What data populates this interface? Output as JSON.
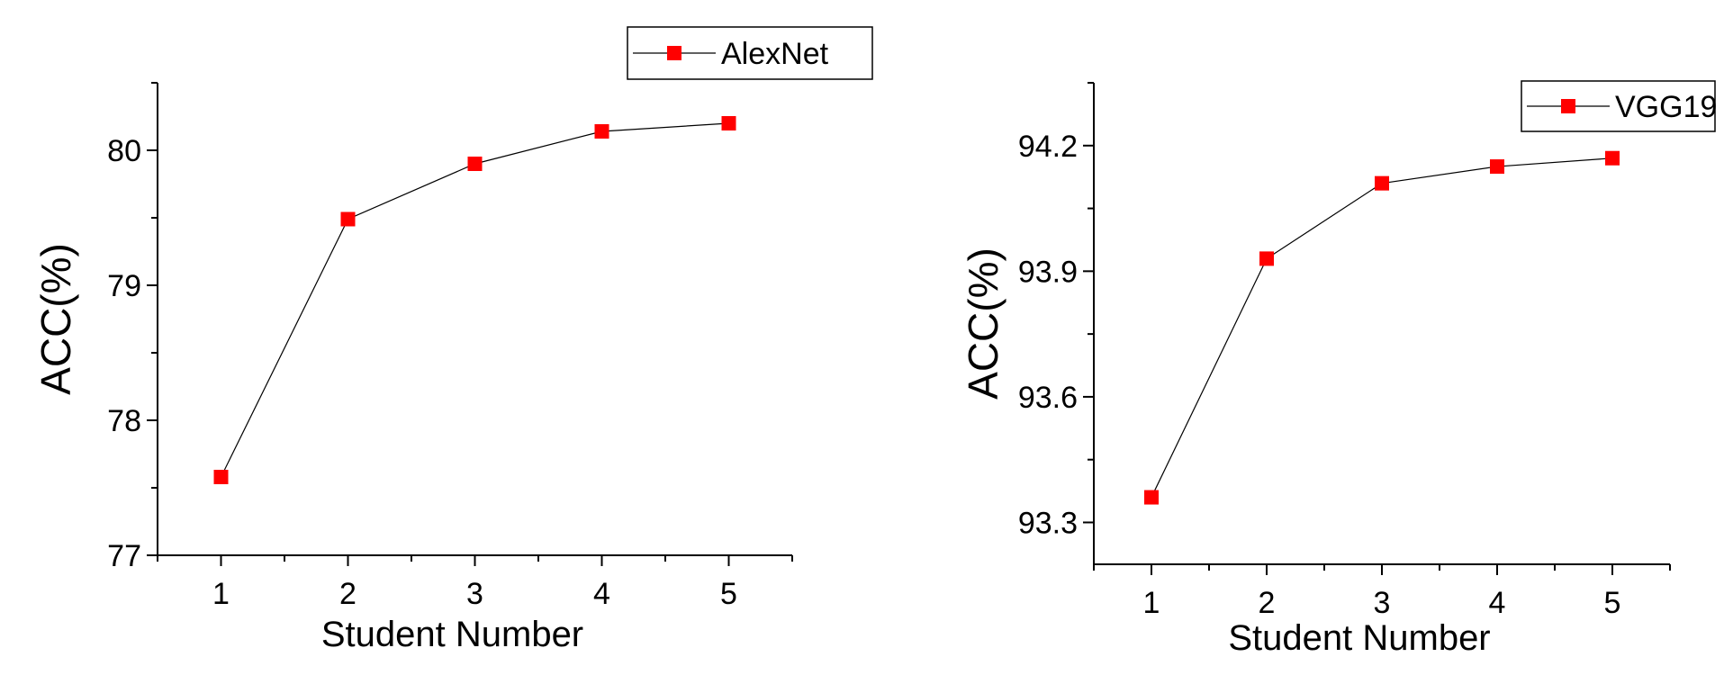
{
  "chart_data": [
    {
      "type": "line",
      "x": [
        1,
        2,
        3,
        4,
        5
      ],
      "series": [
        {
          "name": "AlexNet",
          "values": [
            77.58,
            79.49,
            79.9,
            80.14,
            80.2
          ]
        }
      ],
      "xlabel": "Student Number",
      "ylabel": "ACC(%)",
      "xlim": [
        0.5,
        5.5
      ],
      "ylim": [
        77,
        80.5
      ],
      "xticks": [
        1,
        2,
        3,
        4,
        5
      ],
      "yticks": [
        77,
        78,
        79,
        80
      ],
      "ytick_labels": [
        "77",
        "78",
        "79",
        "80"
      ],
      "legend_position": "top-right",
      "grid": false,
      "marker_color": "#ff0000",
      "line_color": "#000000"
    },
    {
      "type": "line",
      "x": [
        1,
        2,
        3,
        4,
        5
      ],
      "series": [
        {
          "name": "VGG19",
          "values": [
            93.36,
            93.93,
            94.11,
            94.15,
            94.17
          ]
        }
      ],
      "xlabel": "Student Number",
      "ylabel": "ACC(%)",
      "xlim": [
        0.5,
        5.5
      ],
      "ylim": [
        93.2,
        94.35
      ],
      "xticks": [
        1,
        2,
        3,
        4,
        5
      ],
      "yticks": [
        93.3,
        93.6,
        93.9,
        94.2
      ],
      "ytick_labels": [
        "93.3",
        "93.6",
        "93.9",
        "94.2"
      ],
      "legend_position": "top-right",
      "grid": false,
      "marker_color": "#ff0000",
      "line_color": "#000000"
    }
  ]
}
